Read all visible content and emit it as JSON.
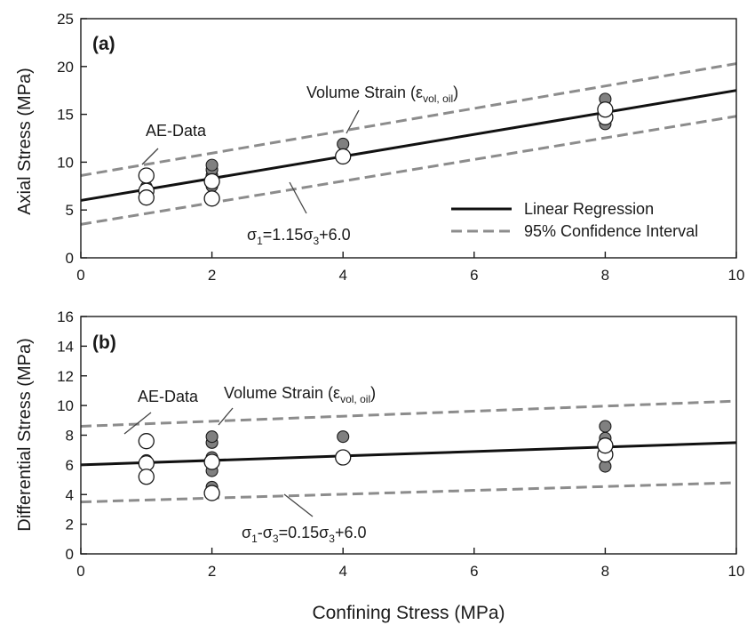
{
  "figure_xlabel": "Confining Stress (MPa)",
  "chart_data": [
    {
      "type": "scatter",
      "panel_label": "(a)",
      "xlabel": "",
      "ylabel": "Axial Stress (MPa)",
      "xlim": [
        0,
        10
      ],
      "ylim": [
        0,
        25
      ],
      "xticks": [
        "0",
        "2",
        "4",
        "6",
        "8",
        "10"
      ],
      "yticks": [
        "0",
        "5",
        "10",
        "15",
        "20",
        "25"
      ],
      "grid": false,
      "legend": {
        "position": "bottom-right",
        "entries": [
          {
            "label": "Linear Regression",
            "style": "solid"
          },
          {
            "label": "95% Confidence Interval",
            "style": "dashed"
          }
        ]
      },
      "regression": {
        "slope": 1.15,
        "intercept": 6.0
      },
      "confidence_interval": {
        "upper": [
          [
            0,
            8.6
          ],
          [
            10,
            20.3
          ]
        ],
        "lower": [
          [
            0,
            3.5
          ],
          [
            10,
            14.8
          ]
        ]
      },
      "series": [
        {
          "name": "AE-Data",
          "marker": "open-circle",
          "points": [
            [
              1,
              8.6
            ],
            [
              1,
              7.0
            ],
            [
              1,
              6.3
            ],
            [
              2,
              6.2
            ],
            [
              2,
              8.0
            ],
            [
              4,
              10.6
            ],
            [
              8,
              14.7
            ],
            [
              8,
              15.5
            ]
          ]
        },
        {
          "name": "Volume Strain (ε vol, oil)",
          "marker": "filled-circle",
          "points": [
            [
              1,
              7.4
            ],
            [
              2,
              6.4
            ],
            [
              2,
              7.5
            ],
            [
              2,
              8.2
            ],
            [
              2,
              8.6
            ],
            [
              2,
              9.2
            ],
            [
              2,
              9.7
            ],
            [
              4,
              11.9
            ],
            [
              8,
              14.0
            ],
            [
              8,
              15.2
            ],
            [
              8,
              15.8
            ],
            [
              8,
              16.6
            ]
          ]
        }
      ],
      "annotations": {
        "ae": "AE-Data",
        "vol": {
          "main": "Volume Strain (ε",
          "sub": "vol, oil",
          "close": ")"
        },
        "equation": {
          "s": "σ",
          "s_sub": "1",
          "mid": "=1.15σ",
          "s2_sub": "3",
          "tail": "+6.0"
        }
      }
    },
    {
      "type": "scatter",
      "panel_label": "(b)",
      "xlabel": "",
      "ylabel": "Differential Stress (MPa)",
      "xlim": [
        0,
        10
      ],
      "ylim": [
        0,
        16
      ],
      "xticks": [
        "0",
        "2",
        "4",
        "6",
        "8",
        "10"
      ],
      "yticks": [
        "0",
        "2",
        "4",
        "6",
        "8",
        "10",
        "12",
        "14",
        "16"
      ],
      "grid": false,
      "regression": {
        "slope": 0.15,
        "intercept": 6.0
      },
      "confidence_interval": {
        "upper": [
          [
            0,
            8.6
          ],
          [
            10,
            10.3
          ]
        ],
        "lower": [
          [
            0,
            3.5
          ],
          [
            10,
            4.8
          ]
        ]
      },
      "series": [
        {
          "name": "AE-Data",
          "marker": "open-circle",
          "points": [
            [
              1,
              7.6
            ],
            [
              1,
              6.1
            ],
            [
              1,
              5.2
            ],
            [
              2,
              4.1
            ],
            [
              2,
              6.2
            ],
            [
              4,
              6.5
            ],
            [
              8,
              6.7
            ],
            [
              8,
              7.3
            ]
          ]
        },
        {
          "name": "Volume Strain (ε vol, oil)",
          "marker": "filled-circle",
          "points": [
            [
              1,
              6.3
            ],
            [
              2,
              4.5
            ],
            [
              2,
              5.6
            ],
            [
              2,
              6.3
            ],
            [
              2,
              6.5
            ],
            [
              2,
              7.5
            ],
            [
              2,
              7.9
            ],
            [
              4,
              7.9
            ],
            [
              8,
              5.9
            ],
            [
              8,
              7.2
            ],
            [
              8,
              7.8
            ],
            [
              8,
              8.6
            ]
          ]
        }
      ],
      "annotations": {
        "ae": "AE-Data",
        "vol": {
          "main": "Volume Strain (ε",
          "sub": "vol, oil",
          "close": ")"
        },
        "equation": {
          "s": "σ",
          "s_sub": "1",
          "mid": "-σ",
          "s2_sub": "3",
          "tail": "=0.15σ",
          "s3_sub": "3",
          "tail2": "+6.0"
        }
      }
    }
  ],
  "colors": {
    "axis": "#1a1a1a",
    "regression": "#111111",
    "ci": "#8c8c8c",
    "filled_marker": "#808080",
    "open_marker": "#ffffff",
    "marker_edge": "#1a1a1a",
    "leader": "#444444"
  }
}
